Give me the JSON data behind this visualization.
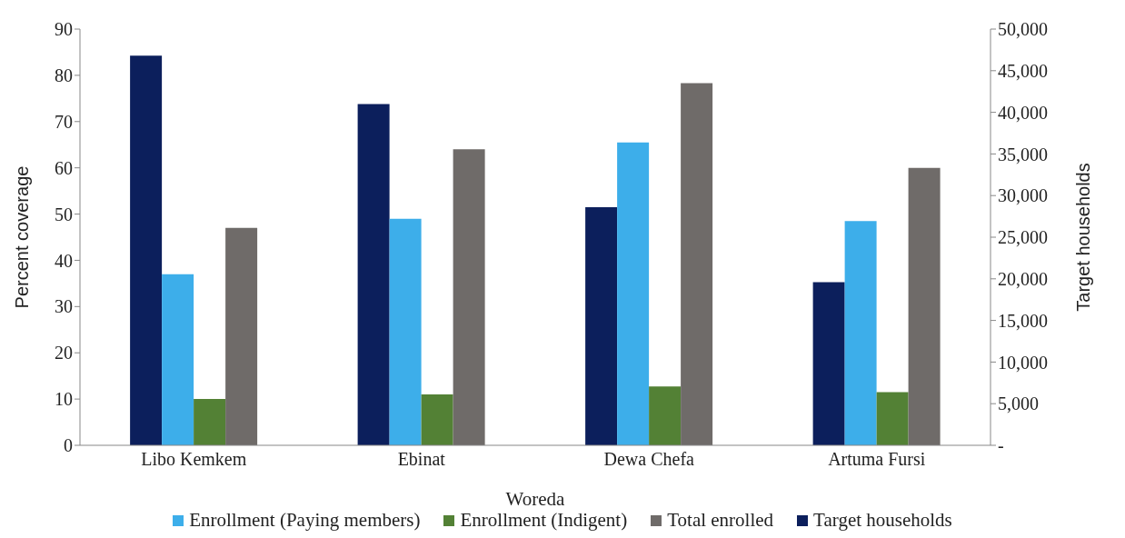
{
  "chart_data": {
    "type": "bar",
    "xlabel": "Woreda",
    "ylabel": "Percent coverage",
    "y2label": "Target households",
    "categories": [
      "Libo Kemkem",
      "Ebinat",
      "Dewa Chefa",
      "Artuma Fursi"
    ],
    "series": [
      {
        "name": "Enrollment (Paying members)",
        "color": "#3daeea",
        "values": [
          37,
          49,
          65.5,
          48.5
        ]
      },
      {
        "name": "Enrollment (Indigent)",
        "color": "#538135",
        "values": [
          10,
          11,
          12.7,
          11.5
        ]
      },
      {
        "name": "Total enrolled",
        "color": "#6f6b69",
        "values": [
          47,
          64,
          78.3,
          60
        ]
      },
      {
        "name": "Target households",
        "color": "#0c1f5c",
        "axis": "y2",
        "values": [
          46800,
          41000,
          28600,
          19600
        ]
      }
    ],
    "ylim": [
      0,
      90
    ],
    "yticks": [
      0,
      10,
      20,
      30,
      40,
      50,
      60,
      70,
      80,
      90
    ],
    "y2lim": [
      0,
      50000
    ],
    "y2ticks": [
      {
        "value": 0,
        "label": "-"
      },
      {
        "value": 5000,
        "label": "5,000"
      },
      {
        "value": 10000,
        "label": "10,000"
      },
      {
        "value": 15000,
        "label": "15,000"
      },
      {
        "value": 20000,
        "label": "20,000"
      },
      {
        "value": 25000,
        "label": "25,000"
      },
      {
        "value": 30000,
        "label": "30,000"
      },
      {
        "value": 35000,
        "label": "35,000"
      },
      {
        "value": 40000,
        "label": "40,000"
      },
      {
        "value": 45000,
        "label": "45,000"
      },
      {
        "value": 50000,
        "label": "50,000"
      }
    ],
    "grid": false,
    "legend": "bottom"
  }
}
